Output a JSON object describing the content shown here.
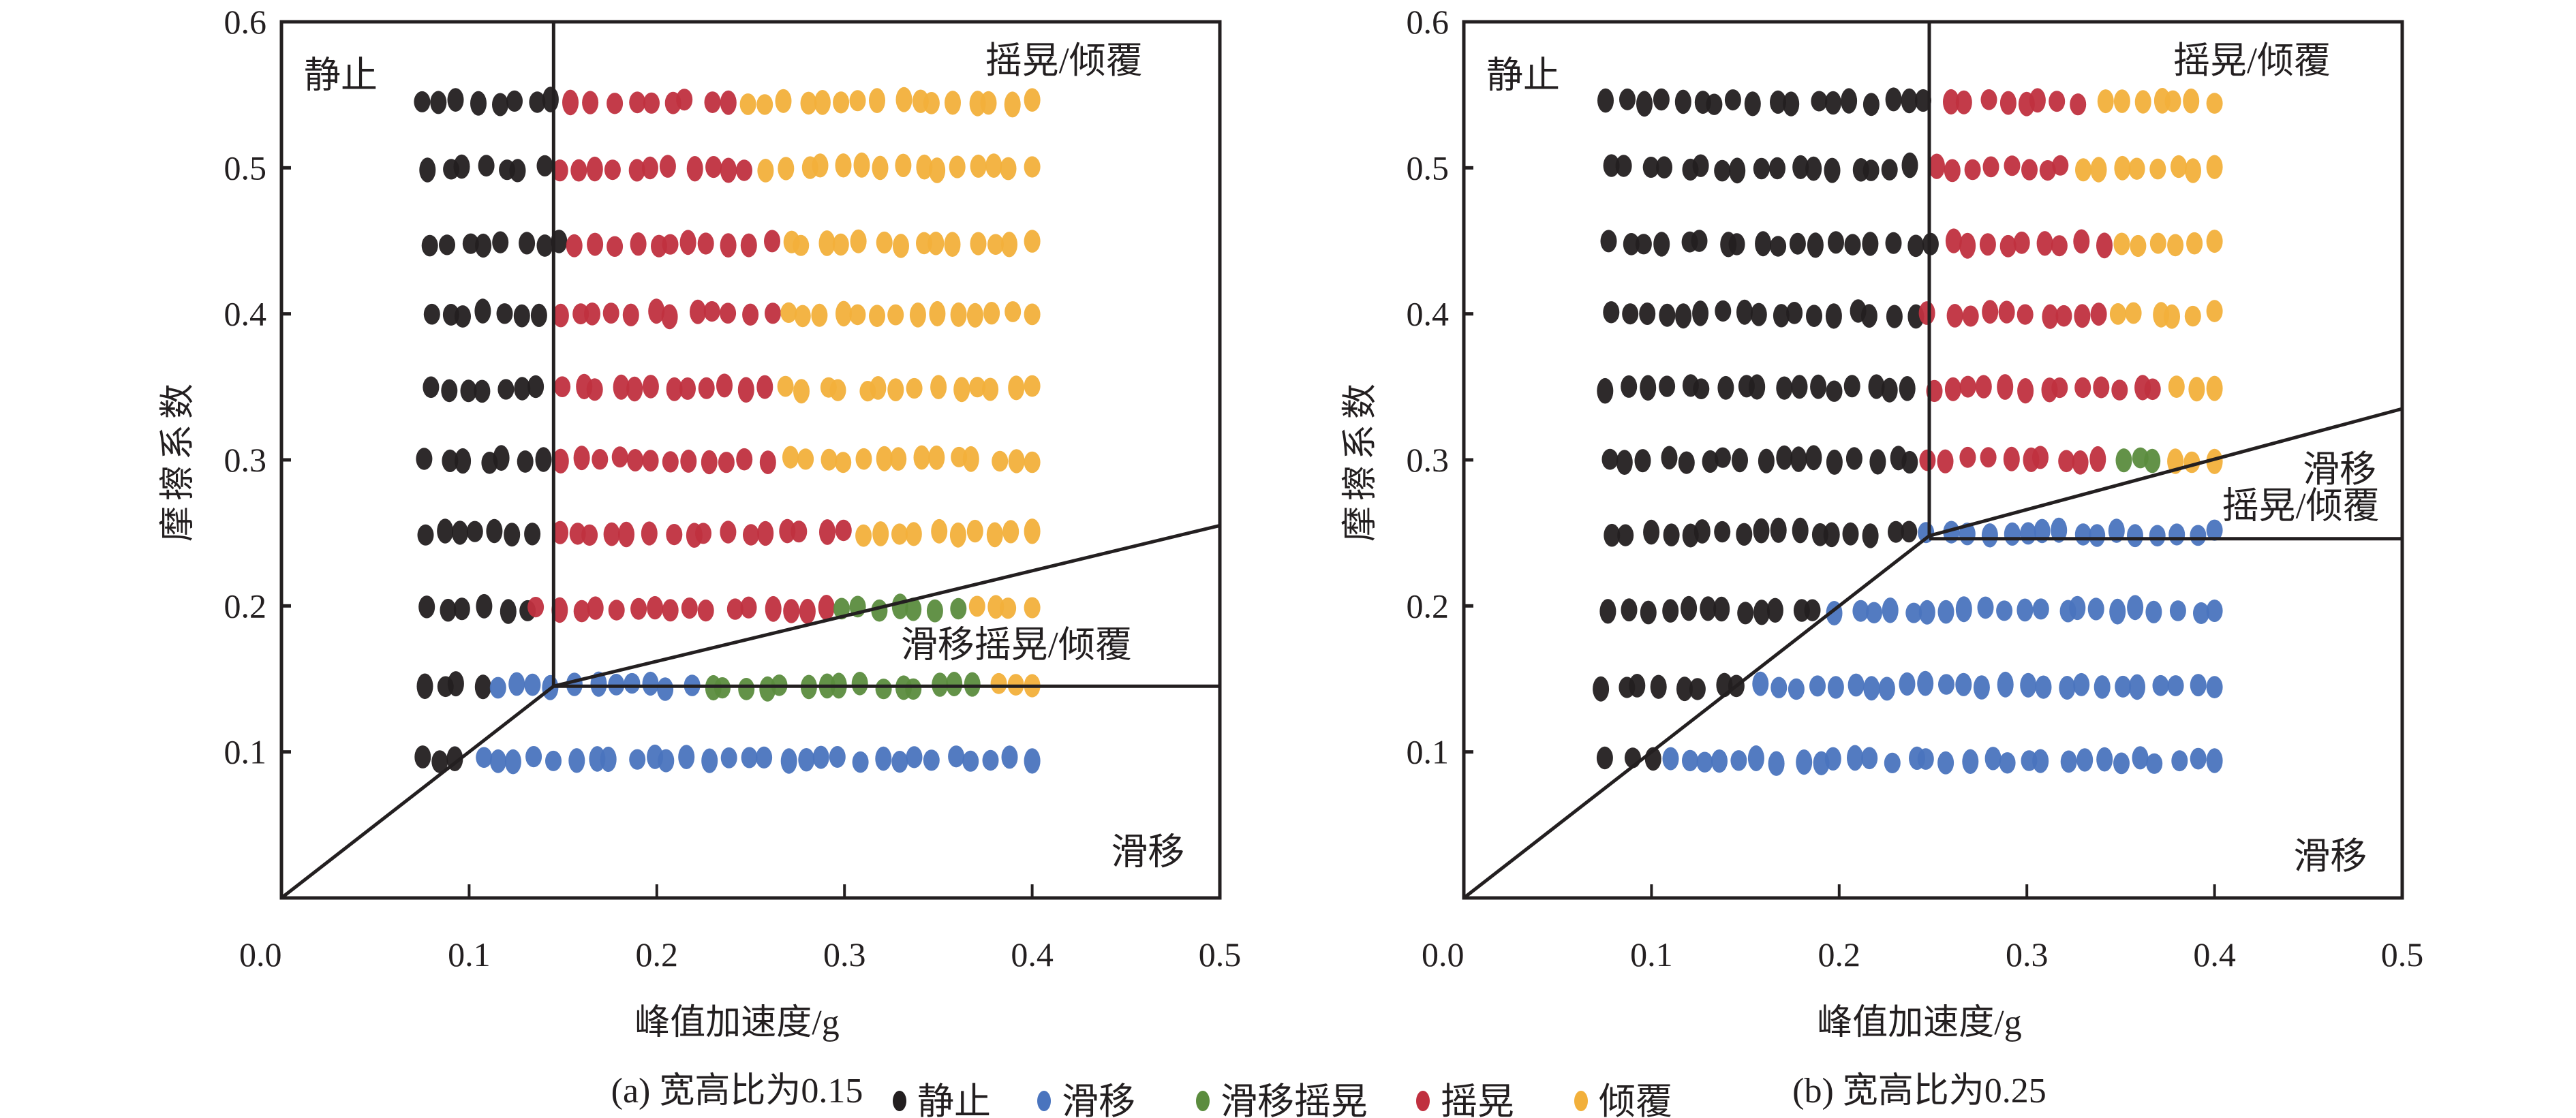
{
  "chart_data": [
    {
      "type": "scatter",
      "title": "",
      "caption": "(a) 宽高比为0.15",
      "xlabel": "峰值加速度/g",
      "ylabel": "摩擦系数",
      "xlim": [
        0.0,
        0.5
      ],
      "ylim": [
        0.0,
        0.6
      ],
      "xticks": [
        "0.0",
        "0.1",
        "0.2",
        "0.3",
        "0.4",
        "0.5"
      ],
      "yticks": [
        "0.1",
        "0.2",
        "0.3",
        "0.4",
        "0.5",
        "0.6"
      ],
      "grid": false,
      "region_labels": [
        {
          "text": "静止",
          "x": 0.012,
          "y": 0.555
        },
        {
          "text": "摇晃/倾覆",
          "x": 0.375,
          "y": 0.565
        },
        {
          "text": "滑移摇晃/倾覆",
          "x": 0.33,
          "y": 0.165
        },
        {
          "text": "滑移",
          "x": 0.442,
          "y": 0.023
        }
      ],
      "boundaries": [
        {
          "x": [
            0.145,
            0.145
          ],
          "y": [
            0.145,
            0.6
          ]
        },
        {
          "x": [
            0.0,
            0.145
          ],
          "y": [
            0.0,
            0.145
          ]
        },
        {
          "x": [
            0.145,
            0.5
          ],
          "y": [
            0.145,
            0.255
          ]
        },
        {
          "x": [
            0.145,
            0.5
          ],
          "y": [
            0.145,
            0.145
          ]
        }
      ],
      "rows": [
        {
          "y": 0.545,
          "x_start": 0.075,
          "x_end": 0.4,
          "segments": [
            {
              "state": "静止",
              "to": 0.145
            },
            {
              "state": "摇晃",
              "to": 0.245
            },
            {
              "state": "倾覆",
              "to": 0.4
            }
          ]
        },
        {
          "y": 0.5,
          "x_start": 0.078,
          "x_end": 0.4,
          "segments": [
            {
              "state": "静止",
              "to": 0.148
            },
            {
              "state": "摇晃",
              "to": 0.255
            },
            {
              "state": "倾覆",
              "to": 0.4
            }
          ]
        },
        {
          "y": 0.448,
          "x_start": 0.078,
          "x_end": 0.4,
          "segments": [
            {
              "state": "静止",
              "to": 0.148
            },
            {
              "state": "摇晃",
              "to": 0.265
            },
            {
              "state": "倾覆",
              "to": 0.4
            }
          ]
        },
        {
          "y": 0.4,
          "x_start": 0.078,
          "x_end": 0.4,
          "segments": [
            {
              "state": "静止",
              "to": 0.148
            },
            {
              "state": "摇晃",
              "to": 0.265
            },
            {
              "state": "倾覆",
              "to": 0.4
            }
          ]
        },
        {
          "y": 0.349,
          "x_start": 0.078,
          "x_end": 0.4,
          "segments": [
            {
              "state": "静止",
              "to": 0.148
            },
            {
              "state": "摇晃",
              "to": 0.268
            },
            {
              "state": "倾覆",
              "to": 0.4
            }
          ]
        },
        {
          "y": 0.3,
          "x_start": 0.078,
          "x_end": 0.4,
          "segments": [
            {
              "state": "静止",
              "to": 0.148
            },
            {
              "state": "摇晃",
              "to": 0.27
            },
            {
              "state": "倾覆",
              "to": 0.4
            }
          ]
        },
        {
          "y": 0.25,
          "x_start": 0.075,
          "x_end": 0.4,
          "segments": [
            {
              "state": "静止",
              "to": 0.148
            },
            {
              "state": "摇晃",
              "to": 0.3
            },
            {
              "state": "倾覆",
              "to": 0.4
            }
          ]
        },
        {
          "y": 0.198,
          "x_start": 0.078,
          "x_end": 0.4,
          "segments": [
            {
              "state": "静止",
              "to": 0.135
            },
            {
              "state": "摇晃",
              "to": 0.292
            },
            {
              "state": "滑移摇晃",
              "to": 0.362
            },
            {
              "state": "倾覆",
              "to": 0.4
            }
          ]
        },
        {
          "y": 0.145,
          "x_start": 0.075,
          "x_end": 0.4,
          "segments": [
            {
              "state": "静止",
              "to": 0.112
            },
            {
              "state": "滑移",
              "to": 0.225
            },
            {
              "state": "滑移摇晃",
              "to": 0.378
            },
            {
              "state": "倾覆",
              "to": 0.4
            }
          ]
        },
        {
          "y": 0.095,
          "x_start": 0.075,
          "x_end": 0.4,
          "segments": [
            {
              "state": "静止",
              "to": 0.105
            },
            {
              "state": "滑移",
              "to": 0.4
            }
          ]
        }
      ]
    },
    {
      "type": "scatter",
      "title": "",
      "caption": "(b) 宽高比为0.25",
      "xlabel": "峰值加速度/g",
      "ylabel": "摩擦系数",
      "xlim": [
        0.0,
        0.5
      ],
      "ylim": [
        0.0,
        0.6
      ],
      "xticks": [
        "0.0",
        "0.1",
        "0.2",
        "0.3",
        "0.4",
        "0.5"
      ],
      "yticks": [
        "0.1",
        "0.2",
        "0.3",
        "0.4",
        "0.5",
        "0.6"
      ],
      "grid": false,
      "region_labels": [
        {
          "text": "静止",
          "x": 0.012,
          "y": 0.555
        },
        {
          "text": "摇晃/倾覆",
          "x": 0.378,
          "y": 0.565
        },
        {
          "text": "滑移",
          "x": 0.447,
          "y": 0.285
        },
        {
          "text": "摇晃/倾覆",
          "x": 0.404,
          "y": 0.26
        },
        {
          "text": "滑移",
          "x": 0.442,
          "y": 0.02
        }
      ],
      "boundaries": [
        {
          "x": [
            0.248,
            0.248
          ],
          "y": [
            0.248,
            0.6
          ]
        },
        {
          "x": [
            0.0,
            0.248
          ],
          "y": [
            0.0,
            0.248
          ]
        },
        {
          "x": [
            0.248,
            0.5
          ],
          "y": [
            0.248,
            0.335
          ]
        },
        {
          "x": [
            0.248,
            0.5
          ],
          "y": [
            0.246,
            0.246
          ]
        }
      ],
      "rows": [
        {
          "y": 0.545,
          "x_start": 0.075,
          "x_end": 0.4,
          "segments": [
            {
              "state": "静止",
              "to": 0.25
            },
            {
              "state": "摇晃",
              "to": 0.335
            },
            {
              "state": "倾覆",
              "to": 0.4
            }
          ]
        },
        {
          "y": 0.5,
          "x_start": 0.078,
          "x_end": 0.4,
          "segments": [
            {
              "state": "静止",
              "to": 0.25
            },
            {
              "state": "摇晃",
              "to": 0.328
            },
            {
              "state": "倾覆",
              "to": 0.4
            }
          ]
        },
        {
          "y": 0.448,
          "x_start": 0.078,
          "x_end": 0.4,
          "segments": [
            {
              "state": "静止",
              "to": 0.25
            },
            {
              "state": "摇晃",
              "to": 0.345
            },
            {
              "state": "倾覆",
              "to": 0.4
            }
          ]
        },
        {
          "y": 0.4,
          "x_start": 0.078,
          "x_end": 0.4,
          "segments": [
            {
              "state": "静止",
              "to": 0.245
            },
            {
              "state": "摇晃",
              "to": 0.345
            },
            {
              "state": "倾覆",
              "to": 0.4
            }
          ]
        },
        {
          "y": 0.349,
          "x_start": 0.078,
          "x_end": 0.4,
          "segments": [
            {
              "state": "静止",
              "to": 0.245
            },
            {
              "state": "摇晃",
              "to": 0.375
            },
            {
              "state": "倾覆",
              "to": 0.4
            }
          ]
        },
        {
          "y": 0.3,
          "x_start": 0.078,
          "x_end": 0.4,
          "segments": [
            {
              "state": "静止",
              "to": 0.245
            },
            {
              "state": "摇晃",
              "to": 0.345
            },
            {
              "state": "滑移摇晃",
              "to": 0.375
            },
            {
              "state": "倾覆",
              "to": 0.4
            }
          ]
        },
        {
          "y": 0.25,
          "x_start": 0.078,
          "x_end": 0.4,
          "segments": [
            {
              "state": "静止",
              "to": 0.24
            },
            {
              "state": "滑移",
              "to": 0.4
            }
          ]
        },
        {
          "y": 0.197,
          "x_start": 0.078,
          "x_end": 0.4,
          "segments": [
            {
              "state": "静止",
              "to": 0.195
            },
            {
              "state": "滑移",
              "to": 0.4
            }
          ]
        },
        {
          "y": 0.145,
          "x_start": 0.075,
          "x_end": 0.4,
          "segments": [
            {
              "state": "静止",
              "to": 0.155
            },
            {
              "state": "滑移",
              "to": 0.4
            }
          ]
        },
        {
          "y": 0.094,
          "x_start": 0.078,
          "x_end": 0.4,
          "segments": [
            {
              "state": "静止",
              "to": 0.105
            },
            {
              "state": "滑移",
              "to": 0.4
            }
          ]
        }
      ]
    }
  ],
  "legend": {
    "placement": "bottom-center",
    "items": [
      {
        "label": "静止",
        "color": "#231f20"
      },
      {
        "label": "滑移",
        "color": "#4a74be"
      },
      {
        "label": "滑移摇晃",
        "color": "#5b8c3e"
      },
      {
        "label": "摇晃",
        "color": "#c0303f"
      },
      {
        "label": "倾覆",
        "color": "#f2b03b"
      }
    ]
  },
  "colors": {
    "axis": "#231f20",
    "静止": "#231f20",
    "滑移": "#4a74be",
    "滑移摇晃": "#5b8c3e",
    "摇晃": "#c0303f",
    "倾覆": "#f2b03b"
  }
}
